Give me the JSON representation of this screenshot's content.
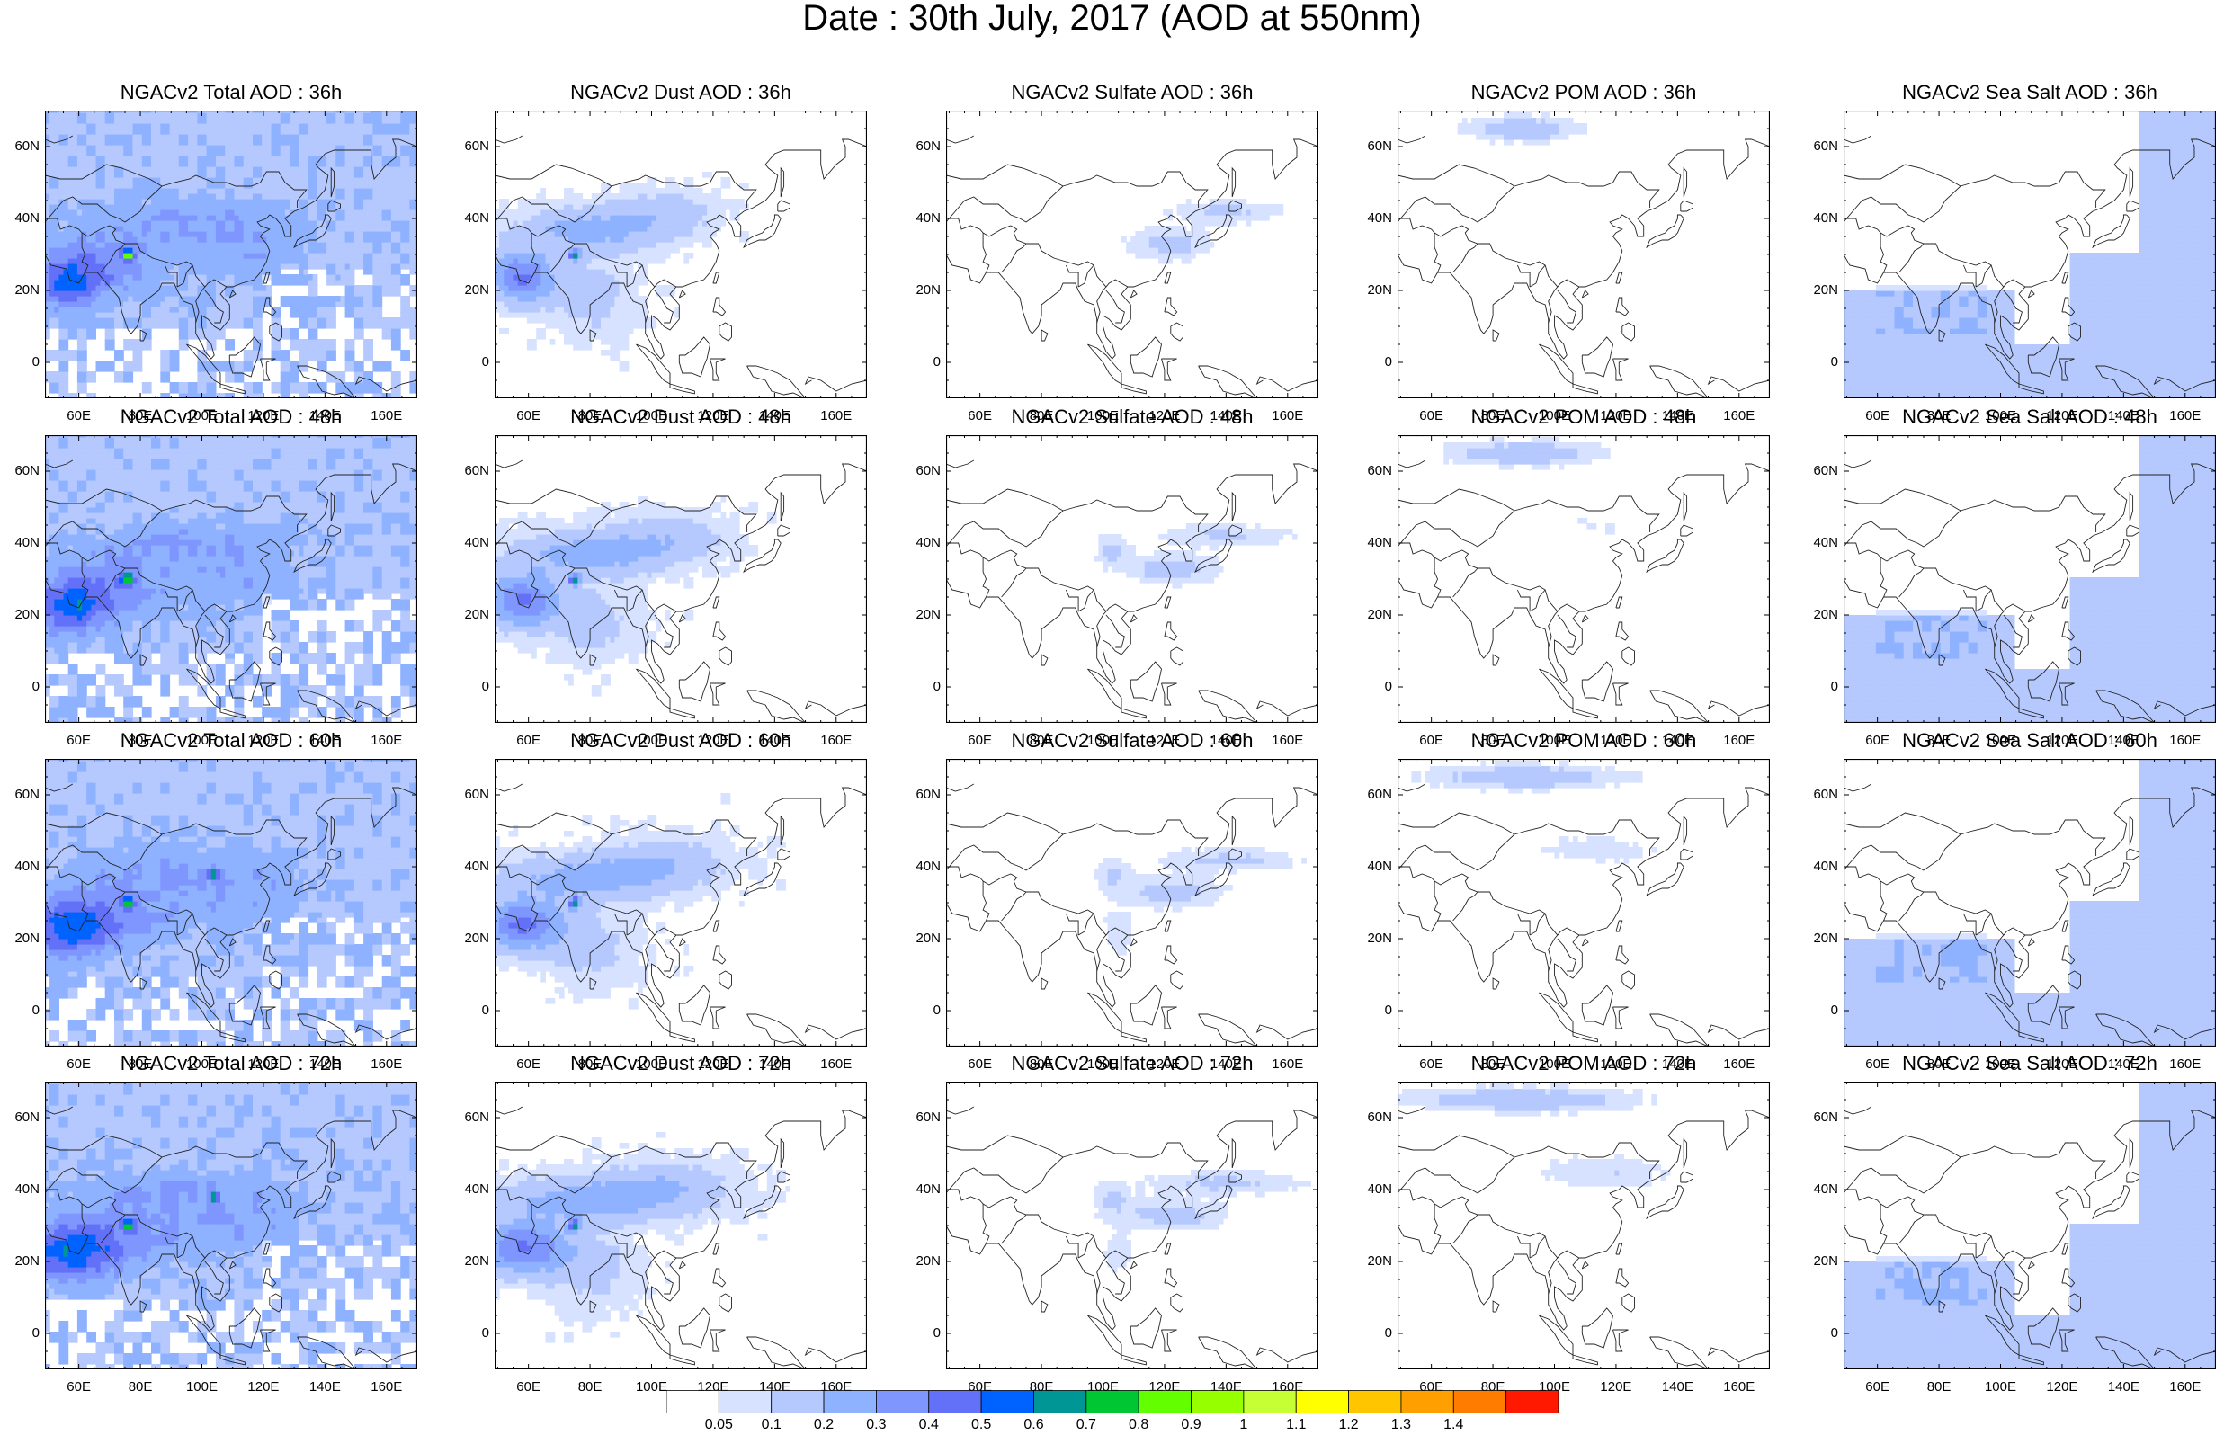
{
  "title": "Date : 30th July, 2017 (AOD at 550nm)",
  "panel_titles": [
    [
      "NGACv2 Total AOD : 36h",
      "NGACv2 Dust AOD : 36h",
      "NGACv2 Sulfate AOD : 36h",
      "NGACv2 POM AOD : 36h",
      "NGACv2 Sea Salt AOD : 36h"
    ],
    [
      "NGACv2 Total AOD : 48h",
      "NGACv2 Dust AOD : 48h",
      "NGACv2 Sulfate AOD : 48h",
      "NGACv2 POM AOD : 48h",
      "NGACv2 Sea Salt AOD : 48h"
    ],
    [
      "NGACv2 Total AOD : 60h",
      "NGACv2 Dust AOD : 60h",
      "NGACv2 Sulfate AOD : 60h",
      "NGACv2 POM AOD : 60h",
      "NGACv2 Sea Salt AOD : 60h"
    ],
    [
      "NGACv2 Total AOD : 72h",
      "NGACv2 Dust AOD : 72h",
      "NGACv2 Sulfate AOD : 72h",
      "NGACv2 POM AOD : 72h",
      "NGACv2 Sea Salt  AOD : 72h"
    ]
  ],
  "lat_labels": [
    "60N",
    "40N",
    "20N",
    "0"
  ],
  "lon_labels": [
    "60E",
    "80E",
    "100E",
    "120E",
    "140E",
    "160E"
  ],
  "colorbar": {
    "levels": [
      "0.05",
      "0.1",
      "0.2",
      "0.3",
      "0.4",
      "0.5",
      "0.6",
      "0.7",
      "0.8",
      "0.9",
      "1",
      "1.1",
      "1.2",
      "1.3",
      "1.4"
    ],
    "colors": [
      "#ffffff",
      "#d6e2ff",
      "#b5c9ff",
      "#8eb2ff",
      "#7f96ff",
      "#6370f8",
      "#0063ff",
      "#009696",
      "#00c633",
      "#63ff00",
      "#96ff00",
      "#c6ff33",
      "#ffff00",
      "#ffc600",
      "#ffa000",
      "#ff7c00",
      "#ff1900"
    ]
  }
}
